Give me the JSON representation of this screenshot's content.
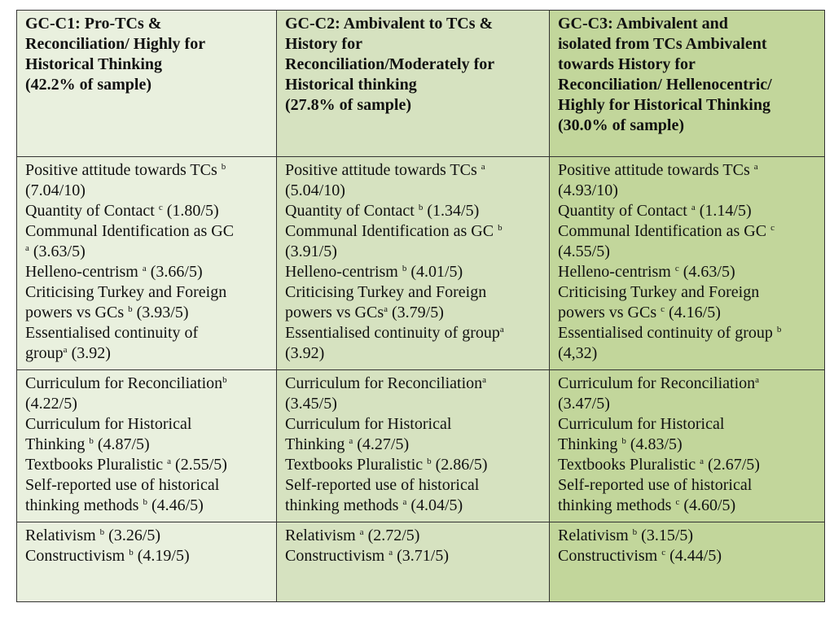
{
  "headers": [
    {
      "lines": [
        "GC-C1: Pro-TCs &",
        "Reconciliation/ Highly for",
        "Historical Thinking",
        "(42.2% of sample)"
      ]
    },
    {
      "lines": [
        "GC-C2: Ambivalent to TCs &",
        "History for",
        "Reconciliation/Moderately for",
        "Historical thinking",
        "(27.8% of sample)"
      ]
    },
    {
      "lines": [
        "GC-C3: Ambivalent and",
        "isolated from TCs  Ambivalent",
        "towards History for",
        "Reconciliation/ Hellenocentric/",
        "Highly for Historical Thinking",
        "(30.0% of sample)"
      ]
    }
  ],
  "rows": [
    {
      "cells": [
        [
          {
            "pre": "Positive attitude towards TCs ",
            "sup": "b",
            "post": ""
          },
          {
            "pre": "(7.04/10)",
            "sup": "",
            "post": ""
          },
          {
            "pre": "Quantity of Contact ",
            "sup": "c",
            "post": " (1.80/5)"
          },
          {
            "pre": "Communal Identification as GC",
            "sup": "",
            "post": ""
          },
          {
            "pre": "",
            "sup": "a",
            "post": " (3.63/5)"
          },
          {
            "pre": "Helleno-centrism ",
            "sup": "a",
            "post": " (3.66/5)"
          },
          {
            "pre": "Criticising Turkey and Foreign",
            "sup": "",
            "post": ""
          },
          {
            "pre": "powers vs GCs ",
            "sup": "b",
            "post": " (3.93/5)"
          },
          {
            "pre": "Essentialised continuity of",
            "sup": "",
            "post": ""
          },
          {
            "pre": "group",
            "sup": "a",
            "post": " (3.92)"
          }
        ],
        [
          {
            "pre": "Positive attitude towards TCs ",
            "sup": "a",
            "post": ""
          },
          {
            "pre": "(5.04/10)",
            "sup": "",
            "post": ""
          },
          {
            "pre": "Quantity of Contact ",
            "sup": "b",
            "post": " (1.34/5)"
          },
          {
            "pre": "Communal Identification as GC ",
            "sup": "b",
            "post": ""
          },
          {
            "pre": "(3.91/5)",
            "sup": "",
            "post": ""
          },
          {
            "pre": "Helleno-centrism ",
            "sup": "b",
            "post": " (4.01/5)"
          },
          {
            "pre": "Criticising Turkey and Foreign",
            "sup": "",
            "post": ""
          },
          {
            "pre": "powers vs GCs",
            "sup": "a",
            "post": " (3.79/5)"
          },
          {
            "pre": "Essentialised continuity of group",
            "sup": "a",
            "post": ""
          },
          {
            "pre": "(3.92)",
            "sup": "",
            "post": ""
          }
        ],
        [
          {
            "pre": "Positive attitude towards TCs ",
            "sup": "a",
            "post": ""
          },
          {
            "pre": "(4.93/10)",
            "sup": "",
            "post": ""
          },
          {
            "pre": "Quantity of Contact ",
            "sup": "a",
            "post": " (1.14/5)"
          },
          {
            "pre": "Communal Identification as GC ",
            "sup": "c",
            "post": ""
          },
          {
            "pre": "(4.55/5)",
            "sup": "",
            "post": ""
          },
          {
            "pre": "Helleno-centrism ",
            "sup": "c",
            "post": " (4.63/5)"
          },
          {
            "pre": "Criticising Turkey and Foreign",
            "sup": "",
            "post": ""
          },
          {
            "pre": "powers vs GCs ",
            "sup": "c",
            "post": " (4.16/5)"
          },
          {
            "pre": "Essentialised continuity of group ",
            "sup": "b",
            "post": ""
          },
          {
            "pre": "(4,32)",
            "sup": "",
            "post": ""
          }
        ]
      ]
    },
    {
      "cells": [
        [
          {
            "pre": "Curriculum for Reconciliation",
            "sup": "b",
            "post": ""
          },
          {
            "pre": "(4.22/5)",
            "sup": "",
            "post": ""
          },
          {
            "pre": "Curriculum for Historical",
            "sup": "",
            "post": ""
          },
          {
            "pre": "Thinking ",
            "sup": "b",
            "post": " (4.87/5)"
          },
          {
            "pre": "Textbooks Pluralistic ",
            "sup": "a",
            "post": " (2.55/5)"
          },
          {
            "pre": "Self-reported use of historical",
            "sup": "",
            "post": ""
          },
          {
            "pre": "thinking methods ",
            "sup": "b",
            "post": " (4.46/5)"
          }
        ],
        [
          {
            "pre": "Curriculum for Reconciliation",
            "sup": "a",
            "post": ""
          },
          {
            "pre": "(3.45/5)",
            "sup": "",
            "post": ""
          },
          {
            "pre": "Curriculum for Historical",
            "sup": "",
            "post": ""
          },
          {
            "pre": "Thinking ",
            "sup": "a",
            "post": " (4.27/5)"
          },
          {
            "pre": "Textbooks Pluralistic ",
            "sup": "b",
            "post": " (2.86/5)"
          },
          {
            "pre": "Self-reported use of historical",
            "sup": "",
            "post": ""
          },
          {
            "pre": "thinking methods ",
            "sup": "a",
            "post": " (4.04/5)"
          }
        ],
        [
          {
            "pre": "Curriculum for Reconciliation",
            "sup": "a",
            "post": ""
          },
          {
            "pre": "(3.47/5)",
            "sup": "",
            "post": ""
          },
          {
            "pre": "Curriculum for Historical",
            "sup": "",
            "post": ""
          },
          {
            "pre": "Thinking ",
            "sup": "b",
            "post": " (4.83/5)"
          },
          {
            "pre": "Textbooks Pluralistic ",
            "sup": "a",
            "post": " (2.67/5)"
          },
          {
            "pre": "Self-reported use of historical",
            "sup": "",
            "post": ""
          },
          {
            "pre": "thinking methods ",
            "sup": "c",
            "post": " (4.60/5)"
          }
        ]
      ]
    },
    {
      "cells": [
        [
          {
            "pre": "Relativism ",
            "sup": "b",
            "post": " (3.26/5)"
          },
          {
            "pre": "Constructivism ",
            "sup": "b",
            "post": " (4.19/5)"
          }
        ],
        [
          {
            "pre": "Relativism ",
            "sup": "a",
            "post": " (2.72/5)"
          },
          {
            "pre": "Constructivism ",
            "sup": "a",
            "post": " (3.71/5)"
          }
        ],
        [
          {
            "pre": "Relativism ",
            "sup": "b",
            "post": " (3.15/5)"
          },
          {
            "pre": "Constructivism ",
            "sup": "c",
            "post": " (4.44/5)"
          }
        ]
      ]
    }
  ],
  "colors": {
    "col1": "#e9f0de",
    "col2": "#d6e2c0",
    "col3": "#c2d69b",
    "border": "#333333"
  }
}
